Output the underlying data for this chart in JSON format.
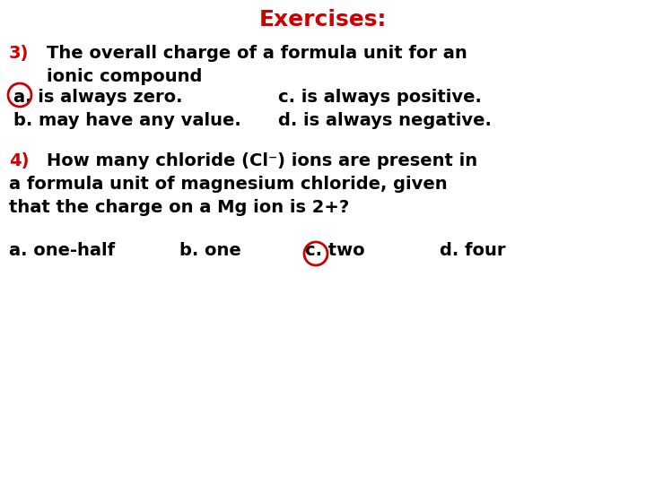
{
  "title": "Exercises:",
  "title_color": "#cc0000",
  "title_fontsize": 18,
  "bg_color": "#ffffff",
  "text_color": "#000000",
  "red_color": "#cc0000",
  "body_fontsize": 14,
  "q3_label": "3)",
  "q3_text": "The overall charge of a formula unit for an\n   ionic compound",
  "q3_a": "a. is always zero.",
  "q3_c": "c. is always positive.",
  "q3_b": "b. may have any value.",
  "q3_d": "d. is always negative.",
  "q4_label": "4)",
  "q4_line1": "How many chloride (Cl⁻) ions are present in",
  "q4_line2": "a formula unit of magnesium chloride, given",
  "q4_line3": "that the charge on a Mg ion is 2+?",
  "q4_a": "a. one-half",
  "q4_b": "b. one",
  "q4_c": "c. two",
  "q4_d": "d. four"
}
